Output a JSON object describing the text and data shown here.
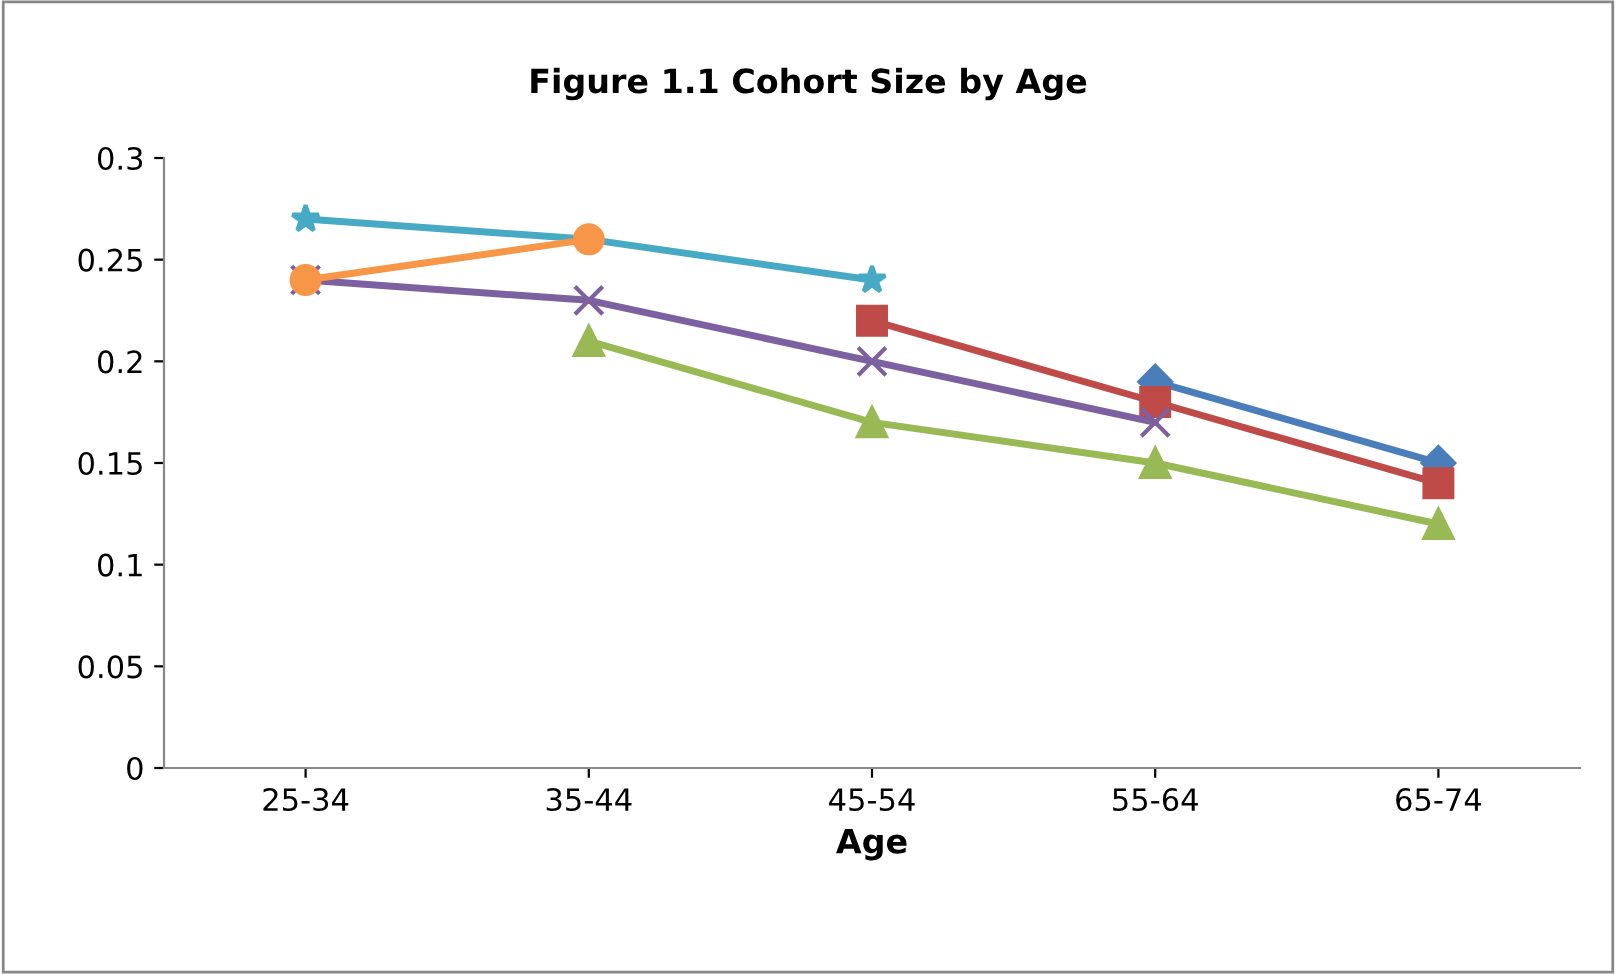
{
  "chart_data": {
    "type": "line",
    "title": "Figure 1.1 Cohort Size by Age",
    "xlabel": "Age",
    "categories": [
      "25-34",
      "35-44",
      "45-54",
      "55-64",
      "65-74"
    ],
    "ylim": [
      0,
      0.3
    ],
    "yticks": [
      0,
      0.05,
      0.1,
      0.15,
      0.2,
      0.25,
      0.3
    ],
    "grid": false,
    "legend": false,
    "line_style": "solid",
    "series": [
      {
        "color": "#4a7ebb",
        "marker": "diamond",
        "values": [
          null,
          null,
          null,
          0.19,
          0.15
        ]
      },
      {
        "color": "#be4b48",
        "marker": "square",
        "values": [
          null,
          null,
          0.22,
          0.18,
          0.14
        ]
      },
      {
        "color": "#98b954",
        "marker": "triangle",
        "values": [
          null,
          0.21,
          0.17,
          0.15,
          0.12
        ]
      },
      {
        "color": "#7d60a0",
        "marker": "cross",
        "values": [
          0.24,
          0.23,
          0.2,
          0.17,
          null
        ]
      },
      {
        "color": "#46aac5",
        "marker": "star",
        "values": [
          0.27,
          0.26,
          0.24,
          null,
          null
        ]
      },
      {
        "color": "#f79646",
        "marker": "circle",
        "values": [
          0.24,
          0.26,
          null,
          null,
          null
        ]
      }
    ]
  }
}
